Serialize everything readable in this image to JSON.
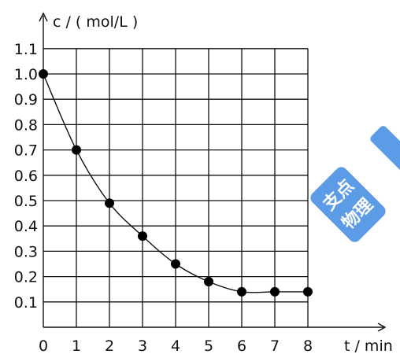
{
  "chart_data": {
    "type": "line",
    "title": "",
    "xlabel": "t / min",
    "ylabel": "c / ( mol/L )",
    "x": [
      0,
      1,
      2,
      3,
      4,
      5,
      6,
      7,
      8
    ],
    "series": [
      {
        "values": [
          1.0,
          0.7,
          0.49,
          0.36,
          0.25,
          0.18,
          0.14,
          0.14,
          0.14
        ]
      }
    ],
    "xticks": [
      "0",
      "1",
      "2",
      "3",
      "4",
      "5",
      "6",
      "7",
      "8"
    ],
    "yticks": [
      "0.1",
      "0.2",
      "0.3",
      "0.4",
      "0.5",
      "0.6",
      "0.7",
      "0.8",
      "0.9",
      "1.0",
      "1.1"
    ],
    "xlim": [
      0,
      8
    ],
    "ylim": [
      0,
      1.1
    ],
    "grid": true,
    "legend": "none",
    "colors": {
      "line": "#111111",
      "marker": "#000000"
    }
  },
  "watermark": {
    "text": [
      "支点",
      "物理"
    ],
    "color": "#2f7fe0"
  }
}
